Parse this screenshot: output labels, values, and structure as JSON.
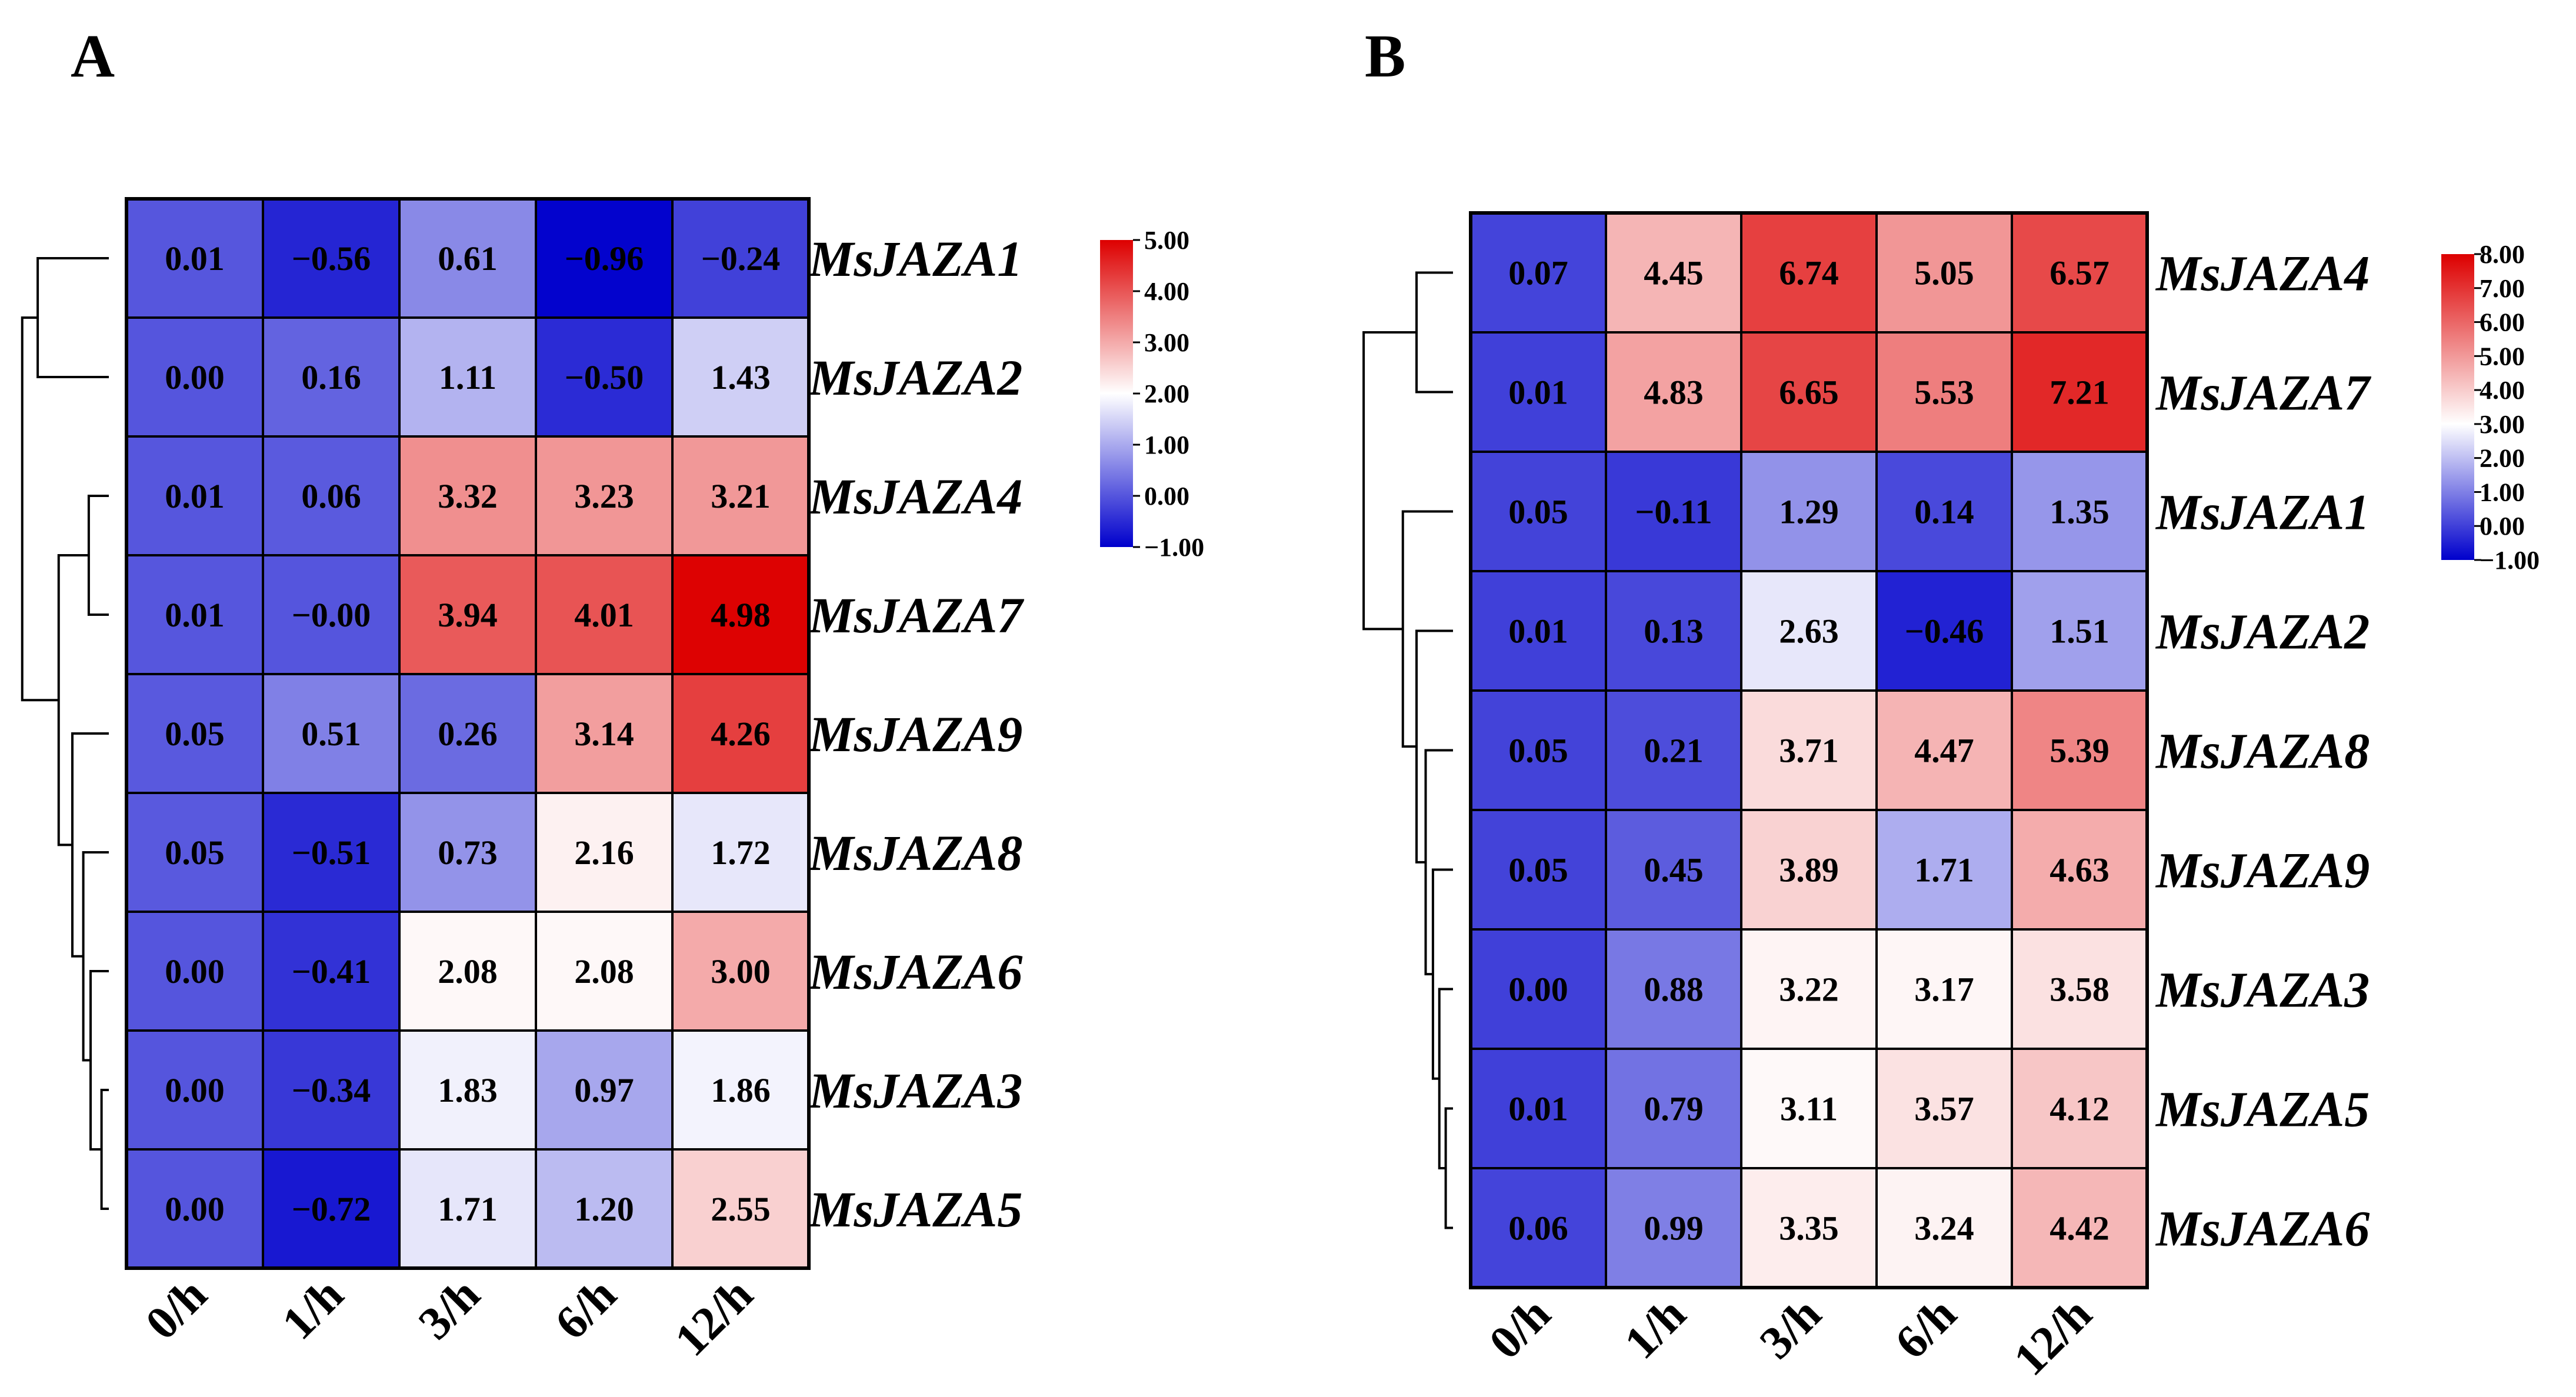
{
  "chart_data": [
    {
      "type": "heatmap",
      "panel_label": "A",
      "columns": [
        "0/h",
        "1/h",
        "3/h",
        "6/h",
        "12/h"
      ],
      "rows": [
        "MsJAZA1",
        "MsJAZA2",
        "MsJAZA4",
        "MsJAZA7",
        "MsJAZA9",
        "MsJAZA8",
        "MsJAZA6",
        "MsJAZA3",
        "MsJAZA5"
      ],
      "values": [
        [
          0.01,
          -0.56,
          0.61,
          -0.96,
          -0.24
        ],
        [
          0.0,
          0.16,
          1.11,
          -0.5,
          1.43
        ],
        [
          0.01,
          0.06,
          3.32,
          3.23,
          3.21
        ],
        [
          0.01,
          -0.0,
          3.94,
          4.01,
          4.98
        ],
        [
          0.05,
          0.51,
          0.26,
          3.14,
          4.26
        ],
        [
          0.05,
          -0.51,
          0.73,
          2.16,
          1.72
        ],
        [
          0.0,
          -0.41,
          2.08,
          2.08,
          3.0
        ],
        [
          0.0,
          -0.34,
          1.83,
          0.97,
          1.86
        ],
        [
          0.0,
          -0.72,
          1.71,
          1.2,
          2.55
        ]
      ],
      "labels": [
        [
          "0.01",
          "−0.56",
          "0.61",
          "−0.96",
          "−0.24"
        ],
        [
          "0.00",
          "0.16",
          "1.11",
          "−0.50",
          "1.43"
        ],
        [
          "0.01",
          "0.06",
          "3.32",
          "3.23",
          "3.21"
        ],
        [
          "0.01",
          "−0.00",
          "3.94",
          "4.01",
          "4.98"
        ],
        [
          "0.05",
          "0.51",
          "0.26",
          "3.14",
          "4.26"
        ],
        [
          "0.05",
          "−0.51",
          "0.73",
          "2.16",
          "1.72"
        ],
        [
          "0.00",
          "−0.41",
          "2.08",
          "2.08",
          "3.00"
        ],
        [
          "0.00",
          "−0.34",
          "1.83",
          "0.97",
          "1.86"
        ],
        [
          "0.00",
          "−0.72",
          "1.71",
          "1.20",
          "2.55"
        ]
      ],
      "color_scale": {
        "min": -1.0,
        "mid": 2.0,
        "max": 5.0,
        "low_color": "#0000cc",
        "mid_color": "#ffffff",
        "high_color": "#dd0000"
      },
      "legend_ticks": [
        "5.00",
        "4.00",
        "3.00",
        "2.00",
        "1.00",
        "0.00",
        "−1.00"
      ]
    },
    {
      "type": "heatmap",
      "panel_label": "B",
      "columns": [
        "0/h",
        "1/h",
        "3/h",
        "6/h",
        "12/h"
      ],
      "rows": [
        "MsJAZA4",
        "MsJAZA7",
        "MsJAZA1",
        "MsJAZA2",
        "MsJAZA8",
        "MsJAZA9",
        "MsJAZA3",
        "MsJAZA5",
        "MsJAZA6"
      ],
      "values": [
        [
          0.07,
          4.45,
          6.74,
          5.05,
          6.57
        ],
        [
          0.01,
          4.83,
          6.65,
          5.53,
          7.21
        ],
        [
          0.05,
          -0.11,
          1.29,
          0.14,
          1.35
        ],
        [
          0.01,
          0.13,
          2.63,
          -0.46,
          1.51
        ],
        [
          0.05,
          0.21,
          3.71,
          4.47,
          5.39
        ],
        [
          0.05,
          0.45,
          3.89,
          1.71,
          4.63
        ],
        [
          0.0,
          0.88,
          3.22,
          3.17,
          3.58
        ],
        [
          0.01,
          0.79,
          3.11,
          3.57,
          4.12
        ],
        [
          0.06,
          0.99,
          3.35,
          3.24,
          4.42
        ]
      ],
      "labels": [
        [
          "0.07",
          "4.45",
          "6.74",
          "5.05",
          "6.57"
        ],
        [
          "0.01",
          "4.83",
          "6.65",
          "5.53",
          "7.21"
        ],
        [
          "0.05",
          "−0.11",
          "1.29",
          "0.14",
          "1.35"
        ],
        [
          "0.01",
          "0.13",
          "2.63",
          "−0.46",
          "1.51"
        ],
        [
          "0.05",
          "0.21",
          "3.71",
          "4.47",
          "5.39"
        ],
        [
          "0.05",
          "0.45",
          "3.89",
          "1.71",
          "4.63"
        ],
        [
          "0.00",
          "0.88",
          "3.22",
          "3.17",
          "3.58"
        ],
        [
          "0.01",
          "0.79",
          "3.11",
          "3.57",
          "4.12"
        ],
        [
          "0.06",
          "0.99",
          "3.35",
          "3.24",
          "4.42"
        ]
      ],
      "color_scale": {
        "min": -1.0,
        "mid": 3.0,
        "max": 8.0,
        "low_color": "#0000cc",
        "mid_color": "#ffffff",
        "high_color": "#dd0000"
      },
      "legend_ticks": [
        "8.00",
        "7.00",
        "6.00",
        "5.00",
        "4.00",
        "3.00",
        "2.00",
        "1.00",
        "0.00",
        "−1.00"
      ]
    }
  ]
}
